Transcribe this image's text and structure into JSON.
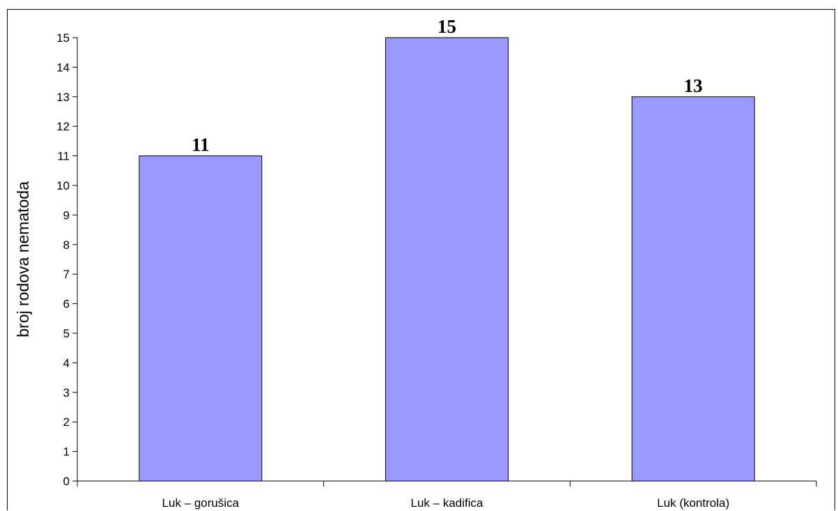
{
  "chart_data": {
    "type": "bar",
    "title": "",
    "xlabel": "",
    "ylabel": "broj rodova nematoda",
    "categories": [
      "Luk – gorušica",
      "Luk – kadifica",
      "Luk (kontrola)"
    ],
    "values": [
      11,
      15,
      13
    ],
    "data_labels": [
      "11",
      "15",
      "13"
    ],
    "ylim": [
      0,
      15
    ],
    "y_ticks": [
      "0",
      "1",
      "2",
      "3",
      "4",
      "5",
      "6",
      "7",
      "8",
      "9",
      "10",
      "11",
      "12",
      "13",
      "14",
      "15"
    ],
    "grid": false,
    "legend": "none",
    "bar_color": "#9999ff",
    "bar_edge_color": "#000000"
  }
}
